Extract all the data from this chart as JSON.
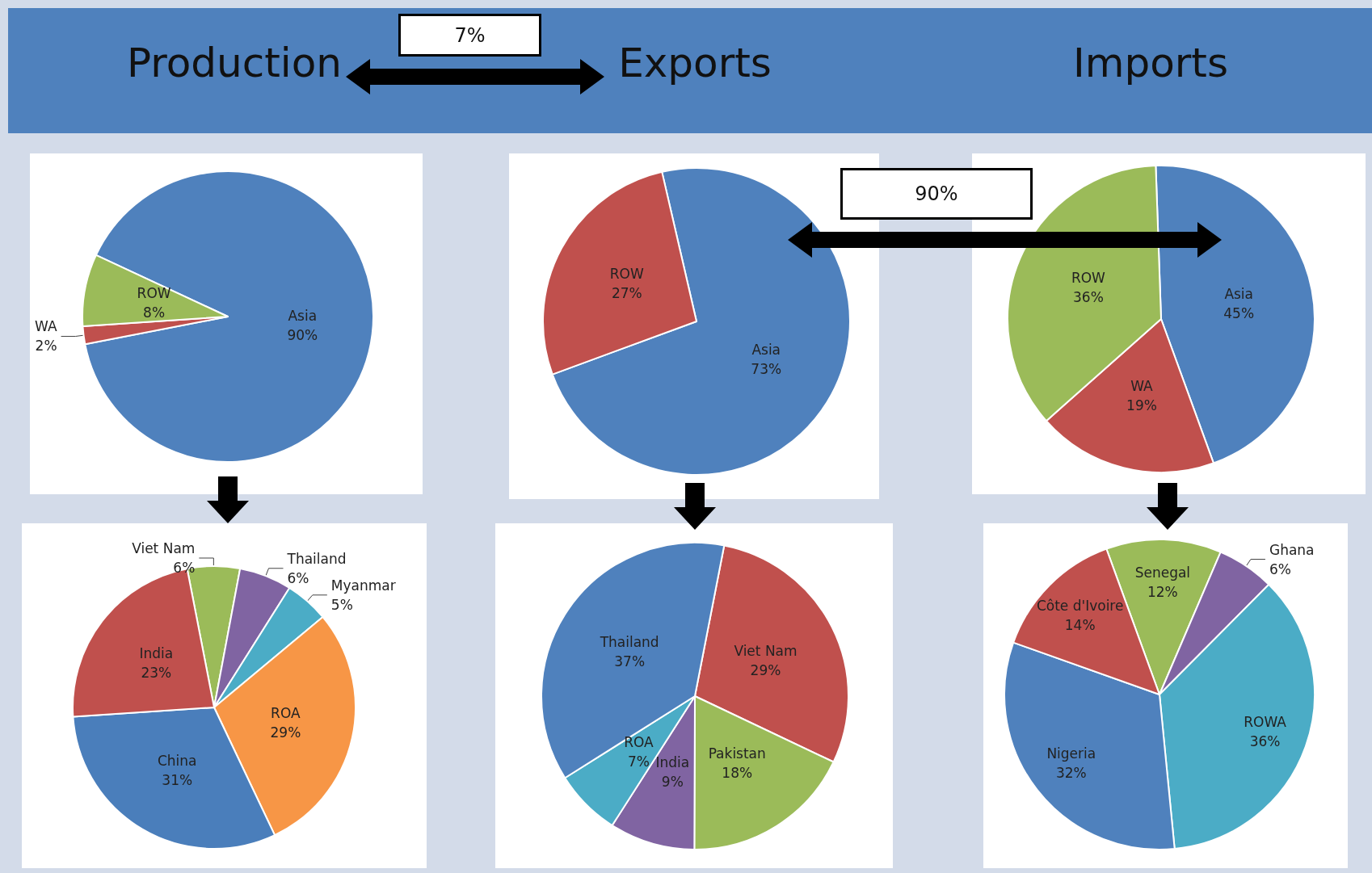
{
  "chart_data": [
    {
      "type": "pie",
      "title": "Production",
      "categories": [
        "Asia",
        "WA",
        "ROW"
      ],
      "values": [
        90,
        2,
        8
      ],
      "value_labels": [
        "90%",
        "2%",
        "8%"
      ],
      "colors": [
        "#4f81bd",
        "#c0504d",
        "#9bbb59"
      ],
      "annotations": [
        "7%"
      ]
    },
    {
      "type": "pie",
      "title": "Exports",
      "categories": [
        "Asia",
        "ROW"
      ],
      "values": [
        73,
        27
      ],
      "value_labels": [
        "73%",
        "27%"
      ],
      "colors": [
        "#4f81bd",
        "#c0504d"
      ]
    },
    {
      "type": "pie",
      "title": "Imports",
      "categories": [
        "Asia",
        "WA",
        "ROW"
      ],
      "values": [
        45,
        19,
        36
      ],
      "value_labels": [
        "45%",
        "19%",
        "36%"
      ],
      "colors": [
        "#4f81bd",
        "#c0504d",
        "#9bbb59"
      ],
      "annotations": [
        "90%"
      ]
    },
    {
      "type": "pie",
      "categories": [
        "Viet Nam",
        "Thailand",
        "Myanmar",
        "ROA",
        "China",
        "India"
      ],
      "values": [
        6,
        6,
        5,
        29,
        31,
        23
      ],
      "value_labels": [
        "6%",
        "6%",
        "5%",
        "29%",
        "31%",
        "23%"
      ],
      "colors": [
        "#9bbb59",
        "#8064a2",
        "#4bacc6",
        "#f79646",
        "#4a7ebb",
        "#c0504d"
      ]
    },
    {
      "type": "pie",
      "categories": [
        "Viet Nam",
        "Pakistan",
        "India",
        "ROA",
        "Thailand"
      ],
      "values": [
        29,
        18,
        9,
        7,
        37
      ],
      "value_labels": [
        "29%",
        "18%",
        "9%",
        "7%",
        "37%"
      ],
      "colors": [
        "#c0504d",
        "#9bbb59",
        "#8064a2",
        "#4bacc6",
        "#4f81bd"
      ]
    },
    {
      "type": "pie",
      "categories": [
        "Senegal",
        "Ghana",
        "ROWA",
        "Nigeria",
        "Côte d'Ivoire"
      ],
      "values": [
        12,
        6,
        36,
        32,
        14
      ],
      "value_labels": [
        "12%",
        "6%",
        "36%",
        "32%",
        "14%"
      ],
      "colors": [
        "#9bbb59",
        "#8064a2",
        "#4bacc6",
        "#4f81bd",
        "#c0504d"
      ]
    }
  ]
}
